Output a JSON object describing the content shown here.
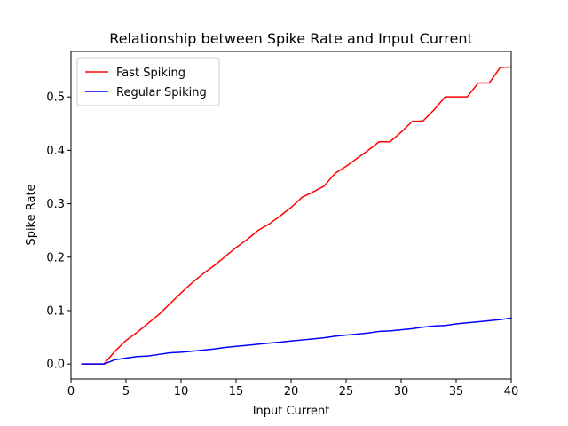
{
  "chart_data": {
    "type": "line",
    "title": "Relationship between Spike Rate and Input Current",
    "xlabel": "Input Current",
    "ylabel": "Spike Rate",
    "xlim": [
      0,
      40
    ],
    "ylim": [
      -0.028,
      0.585
    ],
    "xticks": [
      0,
      5,
      10,
      15,
      20,
      25,
      30,
      35,
      40
    ],
    "yticks": [
      0.0,
      0.1,
      0.2,
      0.3,
      0.4,
      0.5
    ],
    "xtick_labels": [
      "0",
      "5",
      "10",
      "15",
      "20",
      "25",
      "30",
      "35",
      "40"
    ],
    "ytick_labels": [
      "0.0",
      "0.1",
      "0.2",
      "0.3",
      "0.4",
      "0.5"
    ],
    "grid": false,
    "legend_position": "upper-left",
    "x": [
      1,
      2,
      3,
      4,
      5,
      6,
      7,
      8,
      9,
      10,
      11,
      12,
      13,
      14,
      15,
      16,
      17,
      18,
      19,
      20,
      21,
      22,
      23,
      24,
      25,
      26,
      27,
      28,
      29,
      30,
      31,
      32,
      33,
      34,
      35,
      36,
      37,
      38,
      39,
      40
    ],
    "series": [
      {
        "name": "Fast Spiking",
        "color": "#ff0000",
        "values": [
          0,
          0,
          0,
          0.024,
          0.044,
          0.059,
          0.076,
          0.093,
          0.113,
          0.133,
          0.152,
          0.169,
          0.184,
          0.201,
          0.218,
          0.233,
          0.25,
          0.262,
          0.277,
          0.293,
          0.312,
          0.322,
          0.333,
          0.357,
          0.37,
          0.385,
          0.4,
          0.416,
          0.416,
          0.434,
          0.454,
          0.455,
          0.476,
          0.5,
          0.5,
          0.5,
          0.526,
          0.526,
          0.555,
          0.556
        ]
      },
      {
        "name": "Regular Spiking",
        "color": "#0000ff",
        "values": [
          0,
          0,
          0,
          0.008,
          0.011,
          0.014,
          0.015,
          0.018,
          0.021,
          0.022,
          0.024,
          0.026,
          0.028,
          0.031,
          0.033,
          0.035,
          0.037,
          0.039,
          0.041,
          0.043,
          0.045,
          0.047,
          0.049,
          0.052,
          0.054,
          0.056,
          0.058,
          0.061,
          0.062,
          0.064,
          0.066,
          0.069,
          0.071,
          0.072,
          0.075,
          0.077,
          0.079,
          0.081,
          0.083,
          0.086
        ]
      }
    ]
  }
}
